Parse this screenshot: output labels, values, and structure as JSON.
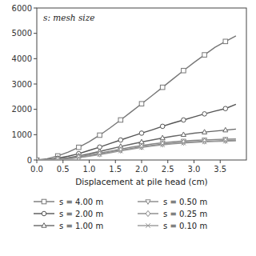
{
  "chart_data": {
    "type": "line",
    "annotation": "s: mesh size",
    "x_label": "Displacement at pile head (cm)",
    "x": [
      0.0,
      0.2,
      0.4,
      0.6,
      0.8,
      1.0,
      1.2,
      1.4,
      1.6,
      1.8,
      2.0,
      2.2,
      2.4,
      2.6,
      2.8,
      3.0,
      3.2,
      3.4,
      3.6,
      3.8
    ],
    "series": [
      {
        "name": "s = 4.00 m",
        "marker": "square",
        "color": "#777777",
        "values": [
          0,
          50,
          160,
          310,
          500,
          720,
          980,
          1270,
          1580,
          1900,
          2220,
          2540,
          2870,
          3200,
          3530,
          3850,
          4150,
          4450,
          4680,
          4900
        ]
      },
      {
        "name": "s = 2.00 m",
        "marker": "circle",
        "color": "#555555",
        "values": [
          0,
          20,
          70,
          150,
          250,
          380,
          510,
          650,
          790,
          930,
          1060,
          1190,
          1330,
          1460,
          1580,
          1700,
          1820,
          1930,
          2030,
          2200
        ]
      },
      {
        "name": "s = 1.00 m",
        "marker": "triangle-up",
        "color": "#666666",
        "values": [
          0,
          10,
          35,
          85,
          160,
          245,
          340,
          435,
          535,
          625,
          710,
          790,
          870,
          940,
          1000,
          1060,
          1100,
          1140,
          1180,
          1220
        ]
      },
      {
        "name": "s = 0.50 m",
        "marker": "triangle-down",
        "color": "#888888",
        "values": [
          0,
          8,
          28,
          65,
          120,
          195,
          270,
          350,
          430,
          505,
          570,
          630,
          680,
          720,
          750,
          775,
          795,
          810,
          820,
          830
        ]
      },
      {
        "name": "s = 0.25 m",
        "marker": "diamond",
        "color": "#888888",
        "values": [
          0,
          6,
          22,
          52,
          100,
          165,
          235,
          310,
          385,
          455,
          520,
          580,
          625,
          665,
          695,
          720,
          740,
          755,
          768,
          778
        ]
      },
      {
        "name": "s = 0.10 m",
        "marker": "x",
        "color": "#999999",
        "values": [
          0,
          5,
          18,
          45,
          90,
          150,
          215,
          285,
          358,
          428,
          492,
          550,
          598,
          638,
          670,
          695,
          715,
          730,
          743,
          754
        ]
      }
    ],
    "xlim": [
      0,
      4.0
    ],
    "ylim": [
      0,
      6000
    ],
    "xticks": [
      {
        "value": 0.0,
        "label": "0.0"
      },
      {
        "value": 0.5,
        "label": "0.5"
      },
      {
        "value": 1.0,
        "label": "1.0"
      },
      {
        "value": 1.5,
        "label": "1.5"
      },
      {
        "value": 2.0,
        "label": "2.0"
      },
      {
        "value": 2.5,
        "label": "2.5"
      },
      {
        "value": 3.0,
        "label": "3.0"
      },
      {
        "value": 3.5,
        "label": "3.5"
      }
    ],
    "yticks": [
      0,
      1000,
      2000,
      3000,
      4000,
      5000,
      6000
    ],
    "grid": false,
    "legend": "bottom"
  }
}
